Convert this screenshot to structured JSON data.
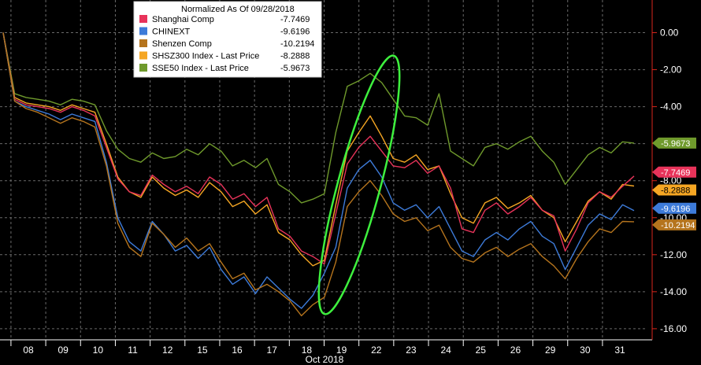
{
  "chart_data": {
    "type": "line",
    "title": "Normalized As Of 09/28/2018",
    "xlabel": "Oct 2018",
    "x_ticks": [
      "08",
      "09",
      "10",
      "11",
      "12",
      "15",
      "16",
      "17",
      "18",
      "19",
      "22",
      "23",
      "24",
      "25",
      "26",
      "29",
      "30",
      "31"
    ],
    "y_ticks": [
      "0.00",
      "-2.00",
      "-4.00",
      "-6.00",
      "-8.00",
      "-10.00",
      "-12.00",
      "-14.00",
      "-16.00"
    ],
    "ylim": [
      -16.6,
      1.0
    ],
    "grid": true,
    "legend_position": "top-left",
    "series": [
      {
        "name": "Shanghai Comp",
        "last": "-7.7469",
        "color": "#e8335a",
        "values": [
          0.0,
          -3.6,
          -3.9,
          -4.0,
          -4.1,
          -4.3,
          -4.0,
          -4.2,
          -4.5,
          -6.2,
          -7.9,
          -8.6,
          -8.8,
          -7.7,
          -8.2,
          -8.6,
          -8.3,
          -8.7,
          -7.8,
          -8.2,
          -9.0,
          -8.7,
          -9.4,
          -8.9,
          -10.6,
          -11.0,
          -11.8,
          -12.1,
          -12.5,
          -9.8,
          -7.1,
          -6.2,
          -5.6,
          -6.4,
          -7.2,
          -7.3,
          -6.9,
          -7.6,
          -7.2,
          -8.4,
          -10.6,
          -10.8,
          -9.6,
          -9.2,
          -9.8,
          -9.4,
          -8.9,
          -9.6,
          -9.9,
          -11.8,
          -10.6,
          -9.2,
          -8.6,
          -8.9,
          -8.3,
          -7.7469
        ]
      },
      {
        "name": "CHINEXT",
        "last": "-9.6196",
        "color": "#3d7bd9",
        "values": [
          0.0,
          -3.7,
          -4.0,
          -4.2,
          -4.4,
          -4.7,
          -4.4,
          -4.6,
          -4.8,
          -7.0,
          -10.0,
          -11.3,
          -11.8,
          -10.2,
          -10.9,
          -11.8,
          -11.5,
          -12.2,
          -11.6,
          -12.8,
          -13.6,
          -13.2,
          -14.1,
          -13.2,
          -13.8,
          -14.4,
          -14.9,
          -14.2,
          -13.0,
          -11.6,
          -8.4,
          -7.4,
          -6.9,
          -7.8,
          -9.2,
          -9.6,
          -9.3,
          -10.0,
          -9.4,
          -10.6,
          -11.8,
          -12.1,
          -11.2,
          -10.8,
          -11.2,
          -10.6,
          -10.2,
          -11.0,
          -11.4,
          -12.8,
          -11.6,
          -10.4,
          -9.8,
          -10.1,
          -9.3,
          -9.6196
        ]
      },
      {
        "name": "Shenzen Comp",
        "last": "-10.2194",
        "color": "#b5741d",
        "values": [
          0.0,
          -3.7,
          -4.1,
          -4.3,
          -4.6,
          -4.9,
          -4.6,
          -4.8,
          -5.1,
          -7.2,
          -10.3,
          -11.6,
          -12.1,
          -10.3,
          -10.9,
          -11.6,
          -11.1,
          -11.8,
          -11.4,
          -12.4,
          -13.3,
          -13.0,
          -13.9,
          -13.6,
          -14.0,
          -14.5,
          -15.3,
          -14.7,
          -14.3,
          -12.4,
          -9.4,
          -8.6,
          -8.0,
          -8.8,
          -9.8,
          -10.2,
          -10.0,
          -10.7,
          -10.4,
          -11.6,
          -12.2,
          -12.4,
          -11.9,
          -11.6,
          -12.1,
          -11.7,
          -11.4,
          -12.1,
          -12.6,
          -13.3,
          -12.2,
          -11.3,
          -10.6,
          -10.8,
          -10.2,
          -10.2194
        ]
      },
      {
        "name": "SHSZ300 Index - Last Price",
        "last": "-8.2888",
        "color": "#f5a623",
        "values": [
          0.0,
          -3.5,
          -3.8,
          -3.9,
          -4.0,
          -4.2,
          -3.9,
          -4.1,
          -4.3,
          -6.0,
          -7.8,
          -8.6,
          -8.9,
          -7.8,
          -8.4,
          -8.8,
          -8.5,
          -8.9,
          -8.1,
          -8.6,
          -9.4,
          -9.1,
          -9.8,
          -9.3,
          -10.8,
          -11.2,
          -12.0,
          -12.6,
          -12.3,
          -9.3,
          -6.4,
          -5.4,
          -4.5,
          -5.6,
          -6.8,
          -7.0,
          -6.6,
          -7.4,
          -7.2,
          -8.7,
          -10.0,
          -10.3,
          -9.2,
          -8.9,
          -9.5,
          -9.2,
          -8.8,
          -9.6,
          -10.0,
          -11.3,
          -10.2,
          -9.1,
          -8.6,
          -9.0,
          -8.2,
          -8.2888
        ]
      },
      {
        "name": "SSE50 Index - Last Price",
        "last": "-5.9673",
        "color": "#6f9a2c",
        "values": [
          0.0,
          -3.3,
          -3.5,
          -3.6,
          -3.7,
          -3.9,
          -3.6,
          -3.7,
          -3.9,
          -5.3,
          -6.3,
          -6.8,
          -7.0,
          -6.5,
          -6.8,
          -6.7,
          -6.3,
          -6.6,
          -6.0,
          -6.4,
          -7.2,
          -6.9,
          -7.3,
          -6.8,
          -8.2,
          -8.6,
          -9.2,
          -9.0,
          -8.7,
          -5.4,
          -2.9,
          -2.6,
          -2.2,
          -2.7,
          -3.6,
          -4.5,
          -4.6,
          -5.0,
          -3.3,
          -6.4,
          -6.8,
          -7.2,
          -6.2,
          -6.0,
          -6.3,
          -5.9,
          -5.6,
          -6.4,
          -7.0,
          -8.2,
          -7.4,
          -6.6,
          -6.2,
          -6.5,
          -5.9,
          -5.9673
        ]
      }
    ]
  },
  "colors": {
    "background": "#000000",
    "grid": "#6a6a6a",
    "axis": "#d9261c",
    "highlight": "#3ef03e",
    "legend_bg": "#ffffff"
  }
}
